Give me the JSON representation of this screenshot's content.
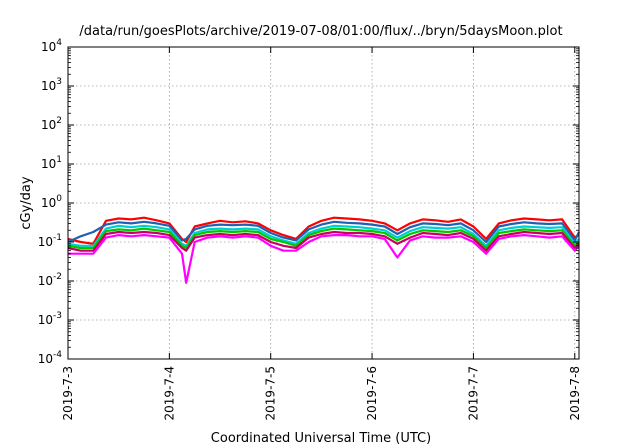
{
  "chart_data": {
    "type": "line",
    "title": "/data/run/goesPlots/archive/2019-07-08/01:00/flux/../bryn/5daysMoon.plot",
    "xlabel": "Coordinated Universal Time (UTC)",
    "ylabel": "cGy/day",
    "y_scale": "log",
    "ylim": [
      0.0001,
      10000
    ],
    "y_ticks": [
      {
        "base": "10",
        "exp": "-4",
        "value": 0.0001
      },
      {
        "base": "10",
        "exp": "-3",
        "value": 0.001
      },
      {
        "base": "10",
        "exp": "-2",
        "value": 0.01
      },
      {
        "base": "10",
        "exp": "-1",
        "value": 0.1
      },
      {
        "base": "10",
        "exp": "0",
        "value": 1
      },
      {
        "base": "10",
        "exp": "1",
        "value": 10
      },
      {
        "base": "10",
        "exp": "2",
        "value": 100
      },
      {
        "base": "10",
        "exp": "3",
        "value": 1000
      },
      {
        "base": "10",
        "exp": "4",
        "value": 10000
      }
    ],
    "xlim": [
      "2019-07-03T00:00",
      "2019-07-08T01:00"
    ],
    "x_ticks": [
      {
        "label": "2019-7-3",
        "value": "2019-07-03T00:00"
      },
      {
        "label": "2019-7-4",
        "value": "2019-07-04T00:00"
      },
      {
        "label": "2019-7-5",
        "value": "2019-07-05T00:00"
      },
      {
        "label": "2019-7-6",
        "value": "2019-07-06T00:00"
      },
      {
        "label": "2019-7-7",
        "value": "2019-07-07T00:00"
      },
      {
        "label": "2019-7-8",
        "value": "2019-07-08T00:00"
      }
    ],
    "grid": true,
    "legend": "none",
    "x": [
      "2019-07-03T00:00",
      "2019-07-03T03:00",
      "2019-07-03T06:00",
      "2019-07-03T09:00",
      "2019-07-03T12:00",
      "2019-07-03T15:00",
      "2019-07-03T18:00",
      "2019-07-03T21:00",
      "2019-07-04T00:00",
      "2019-07-04T03:00",
      "2019-07-04T04:00",
      "2019-07-04T06:00",
      "2019-07-04T09:00",
      "2019-07-04T12:00",
      "2019-07-04T15:00",
      "2019-07-04T18:00",
      "2019-07-04T21:00",
      "2019-07-05T00:00",
      "2019-07-05T03:00",
      "2019-07-05T06:00",
      "2019-07-05T09:00",
      "2019-07-05T12:00",
      "2019-07-05T15:00",
      "2019-07-05T18:00",
      "2019-07-05T21:00",
      "2019-07-06T00:00",
      "2019-07-06T03:00",
      "2019-07-06T06:00",
      "2019-07-06T09:00",
      "2019-07-06T12:00",
      "2019-07-06T15:00",
      "2019-07-06T18:00",
      "2019-07-06T21:00",
      "2019-07-07T00:00",
      "2019-07-07T03:00",
      "2019-07-07T06:00",
      "2019-07-07T09:00",
      "2019-07-07T12:00",
      "2019-07-07T15:00",
      "2019-07-07T18:00",
      "2019-07-07T21:00",
      "2019-07-08T00:00",
      "2019-07-08T01:00"
    ],
    "series": [
      {
        "color": "#ff0000",
        "values": [
          0.12,
          0.1,
          0.09,
          0.35,
          0.4,
          0.38,
          0.42,
          0.36,
          0.3,
          0.12,
          0.1,
          0.25,
          0.3,
          0.35,
          0.32,
          0.34,
          0.3,
          0.2,
          0.15,
          0.12,
          0.25,
          0.35,
          0.42,
          0.4,
          0.38,
          0.35,
          0.3,
          0.2,
          0.3,
          0.38,
          0.36,
          0.33,
          0.38,
          0.25,
          0.12,
          0.3,
          0.36,
          0.4,
          0.38,
          0.36,
          0.38,
          0.13,
          0.15
        ]
      },
      {
        "color": "#1f5fb5",
        "values": [
          0.1,
          0.14,
          0.18,
          0.28,
          0.32,
          0.3,
          0.33,
          0.3,
          0.26,
          0.11,
          0.12,
          0.21,
          0.26,
          0.28,
          0.27,
          0.28,
          0.26,
          0.17,
          0.13,
          0.11,
          0.21,
          0.28,
          0.33,
          0.31,
          0.3,
          0.28,
          0.25,
          0.16,
          0.24,
          0.3,
          0.29,
          0.27,
          0.3,
          0.2,
          0.1,
          0.25,
          0.29,
          0.32,
          0.3,
          0.29,
          0.3,
          0.11,
          0.18
        ]
      },
      {
        "color": "#00ced1",
        "values": [
          0.09,
          0.08,
          0.08,
          0.22,
          0.26,
          0.24,
          0.26,
          0.24,
          0.21,
          0.09,
          0.08,
          0.17,
          0.21,
          0.22,
          0.21,
          0.22,
          0.21,
          0.14,
          0.11,
          0.09,
          0.17,
          0.22,
          0.26,
          0.25,
          0.24,
          0.22,
          0.2,
          0.13,
          0.19,
          0.24,
          0.23,
          0.22,
          0.24,
          0.16,
          0.08,
          0.2,
          0.23,
          0.25,
          0.24,
          0.23,
          0.24,
          0.09,
          0.12
        ]
      },
      {
        "color": "#00c800",
        "values": [
          0.08,
          0.07,
          0.07,
          0.19,
          0.21,
          0.2,
          0.22,
          0.2,
          0.18,
          0.08,
          0.07,
          0.15,
          0.18,
          0.19,
          0.18,
          0.19,
          0.18,
          0.12,
          0.1,
          0.08,
          0.15,
          0.19,
          0.22,
          0.21,
          0.2,
          0.19,
          0.17,
          0.11,
          0.16,
          0.2,
          0.19,
          0.18,
          0.2,
          0.14,
          0.07,
          0.17,
          0.19,
          0.21,
          0.2,
          0.19,
          0.2,
          0.08,
          0.1
        ]
      },
      {
        "color": "#c80060",
        "values": [
          0.07,
          0.06,
          0.06,
          0.16,
          0.18,
          0.17,
          0.18,
          0.17,
          0.15,
          0.07,
          0.06,
          0.13,
          0.15,
          0.16,
          0.15,
          0.16,
          0.15,
          0.1,
          0.08,
          0.07,
          0.13,
          0.16,
          0.18,
          0.17,
          0.17,
          0.16,
          0.14,
          0.09,
          0.13,
          0.17,
          0.16,
          0.15,
          0.17,
          0.12,
          0.06,
          0.14,
          0.16,
          0.18,
          0.17,
          0.16,
          0.17,
          0.07,
          0.09
        ]
      },
      {
        "color": "#ff00ff",
        "values": [
          0.05,
          0.05,
          0.05,
          0.13,
          0.15,
          0.14,
          0.15,
          0.14,
          0.13,
          0.05,
          0.009,
          0.1,
          0.13,
          0.14,
          0.13,
          0.14,
          0.13,
          0.08,
          0.06,
          0.06,
          0.1,
          0.14,
          0.15,
          0.15,
          0.14,
          0.14,
          0.12,
          0.04,
          0.11,
          0.14,
          0.13,
          0.13,
          0.14,
          0.1,
          0.05,
          0.12,
          0.14,
          0.15,
          0.14,
          0.13,
          0.14,
          0.06,
          0.08
        ]
      }
    ]
  }
}
